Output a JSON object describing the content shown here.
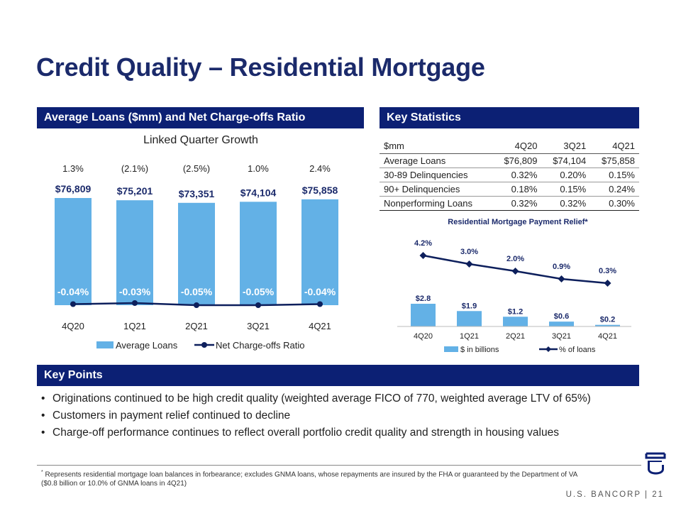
{
  "title": "Credit Quality – Residential Mortgage",
  "left_section": {
    "header": "Average Loans ($mm) and Net Charge-offs Ratio",
    "subtitle": "Linked Quarter Growth"
  },
  "right_section": {
    "header": "Key Statistics"
  },
  "key_points_section": {
    "header": "Key Points",
    "items": [
      "Originations continued to be high credit quality (weighted average FICO of 770, weighted average LTV of 65%)",
      "Customers in payment relief continued to decline",
      "Charge-off performance continues to reflect overall portfolio credit quality and strength in housing values"
    ]
  },
  "stats_table": {
    "headers": [
      "$mm",
      "4Q20",
      "3Q21",
      "4Q21"
    ],
    "rows": [
      [
        "Average Loans",
        "$76,809",
        "$74,104",
        "$75,858"
      ],
      [
        "30-89 Delinquencies",
        "0.32%",
        "0.20%",
        "0.15%"
      ],
      [
        "90+ Delinquencies",
        "0.18%",
        "0.15%",
        "0.24%"
      ],
      [
        "Nonperforming Loans",
        "0.32%",
        "0.32%",
        "0.30%"
      ]
    ]
  },
  "footnote_marker": "*",
  "footnote": " Represents residential mortgage loan balances in forbearance; excludes GNMA loans, whose repayments are insured by the FHA or guaranteed by the Department of VA ($0.8 billion or 10.0% of GNMA loans in 4Q21)",
  "footer": "U.S. BANCORP  |  21",
  "colors": {
    "navy": "#0c2074",
    "bar_blue": "#63b1e6",
    "line": "#0d1f5c"
  },
  "chart_data": [
    {
      "type": "bar",
      "title": "",
      "categories": [
        "4Q20",
        "1Q21",
        "2Q21",
        "3Q21",
        "4Q21"
      ],
      "growth_labels": [
        "1.3%",
        "(2.1%)",
        "(2.5%)",
        "1.0%",
        "2.4%"
      ],
      "series": [
        {
          "name": "Average Loans",
          "type": "bar",
          "values": [
            76809,
            75201,
            73351,
            74104,
            75858
          ],
          "labels": [
            "$76,809",
            "$75,201",
            "$73,351",
            "$74,104",
            "$75,858"
          ]
        },
        {
          "name": "Net Charge-offs Ratio",
          "type": "line",
          "values": [
            -0.04,
            -0.03,
            -0.05,
            -0.05,
            -0.04
          ],
          "labels": [
            "-0.04%",
            "-0.03%",
            "-0.05%",
            "-0.05%",
            "-0.04%"
          ]
        }
      ],
      "legend": "bottom"
    },
    {
      "type": "bar",
      "title": "Residential Mortgage Payment Relief*",
      "categories": [
        "4Q20",
        "1Q21",
        "2Q21",
        "3Q21",
        "4Q21"
      ],
      "series": [
        {
          "name": "$ in billions",
          "type": "bar",
          "values": [
            2.8,
            1.9,
            1.2,
            0.6,
            0.2
          ],
          "labels": [
            "$2.8",
            "$1.9",
            "$1.2",
            "$0.6",
            "$0.2"
          ]
        },
        {
          "name": "% of loans",
          "type": "line",
          "values": [
            4.2,
            3.0,
            2.0,
            0.9,
            0.3
          ],
          "labels": [
            "4.2%",
            "3.0%",
            "2.0%",
            "0.9%",
            "0.3%"
          ]
        }
      ],
      "legend": "bottom"
    }
  ]
}
